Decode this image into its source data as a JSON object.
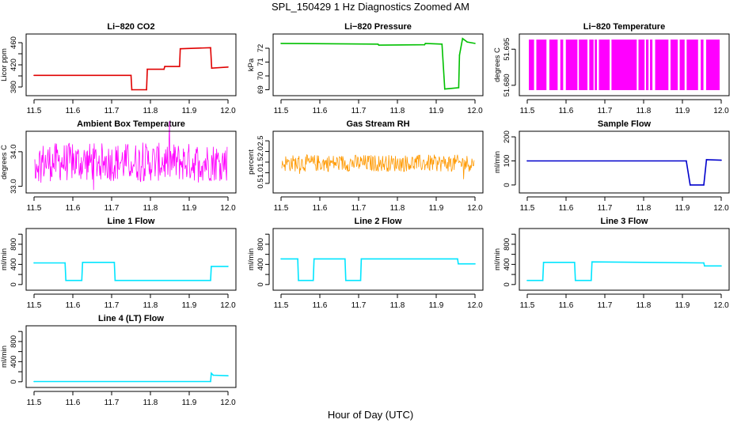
{
  "figure": {
    "title": "SPL_150429  1 Hz Diagnostics Zoomed AM",
    "xlabel": "Hour of Day (UTC)"
  },
  "chart_data": [
    {
      "type": "line",
      "title": "Li−820 CO2",
      "ylabel": "Licor ppm",
      "color": "#e00000",
      "xlim": [
        11.5,
        12.0
      ],
      "xticks": [
        "11.5",
        "11.6",
        "11.7",
        "11.8",
        "11.9",
        "12.0"
      ],
      "ylim": [
        370,
        470
      ],
      "yticks": [
        380,
        400,
        420,
        440,
        460
      ],
      "ytick_labels": [
        "380",
        "",
        "420",
        "",
        "460"
      ],
      "x": [
        11.5,
        11.75,
        11.752,
        11.79,
        11.792,
        11.835,
        11.837,
        11.875,
        11.877,
        11.955,
        11.958,
        12.0
      ],
      "y": [
        401,
        401,
        375,
        375,
        412,
        412,
        417,
        417,
        449,
        451,
        414,
        416
      ]
    },
    {
      "type": "line",
      "title": "Li−820 Pressure",
      "ylabel": "kPa",
      "color": "#00c000",
      "xlim": [
        11.5,
        12.0
      ],
      "xticks": [
        "11.5",
        "11.6",
        "11.7",
        "11.8",
        "11.9",
        "12.0"
      ],
      "ylim": [
        68.8,
        72.8
      ],
      "yticks": [
        69,
        70,
        71,
        72
      ],
      "ytick_labels": [
        "69",
        "70",
        "71",
        "72"
      ],
      "x": [
        11.5,
        11.75,
        11.752,
        11.87,
        11.872,
        11.915,
        11.922,
        11.958,
        11.96,
        11.968,
        11.98,
        12.0
      ],
      "y": [
        72.35,
        72.3,
        72.22,
        72.25,
        72.35,
        72.3,
        69.05,
        69.15,
        71.5,
        72.7,
        72.45,
        72.35
      ]
    },
    {
      "type": "band",
      "title": "Li−820 Temperature",
      "ylabel": "degrees C",
      "color": "#ff00ff",
      "xlim": [
        11.5,
        12.0
      ],
      "xticks": [
        "11.5",
        "11.6",
        "11.7",
        "11.8",
        "11.9",
        "12.0"
      ],
      "ylim": [
        51.677,
        51.7
      ],
      "yticks": [
        51.68,
        51.695
      ],
      "ytick_labels": [
        "51.680",
        "51.695"
      ],
      "low": 51.678,
      "high": 51.699
    },
    {
      "type": "noise",
      "title": "Ambient Box Temperature",
      "ylabel": "degrees C",
      "color": "#ff00ff",
      "xlim": [
        11.5,
        12.0
      ],
      "xticks": [
        "11.5",
        "11.6",
        "11.7",
        "11.8",
        "11.9",
        "12.0"
      ],
      "ylim": [
        32.9,
        34.5
      ],
      "yticks": [
        33.0,
        34.0
      ],
      "ytick_labels": [
        "33.0",
        "34.0"
      ],
      "center": 33.7,
      "spread": 0.7
    },
    {
      "type": "noise",
      "title": "Gas Stream RH",
      "ylabel": "percent",
      "color": "#ff9900",
      "xlim": [
        11.5,
        12.0
      ],
      "xticks": [
        "11.5",
        "11.6",
        "11.7",
        "11.8",
        "11.9",
        "12.0"
      ],
      "ylim": [
        0.2,
        2.8
      ],
      "yticks": [
        0.5,
        1.0,
        1.5,
        2.0,
        2.5
      ],
      "ytick_labels": [
        "0.5",
        "1.0",
        "1.5",
        "2.0",
        "2.5"
      ],
      "center": 1.45,
      "spread": 0.5
    },
    {
      "type": "line",
      "title": "Sample Flow",
      "ylabel": "ml/min",
      "color": "#0000cc",
      "xlim": [
        11.5,
        12.0
      ],
      "xticks": [
        "11.5",
        "11.6",
        "11.7",
        "11.8",
        "11.9",
        "12.0"
      ],
      "ylim": [
        -20,
        210
      ],
      "yticks": [
        0,
        100,
        200
      ],
      "ytick_labels": [
        "0",
        "100",
        "200"
      ],
      "x": [
        11.5,
        11.91,
        11.92,
        11.955,
        11.962,
        12.0
      ],
      "y": [
        100,
        100,
        0,
        0,
        105,
        103
      ]
    },
    {
      "type": "line",
      "title": "Line 1 Flow",
      "ylabel": "ml/min",
      "color": "#00e5ff",
      "xlim": [
        11.5,
        12.0
      ],
      "xticks": [
        "11.5",
        "11.6",
        "11.7",
        "11.8",
        "11.9",
        "12.0"
      ],
      "ylim": [
        -50,
        1050
      ],
      "yticks": [
        0,
        200,
        400,
        600,
        800,
        1000
      ],
      "ytick_labels": [
        "0",
        "",
        "400",
        "",
        "800",
        ""
      ],
      "x": [
        11.5,
        11.58,
        11.582,
        11.623,
        11.625,
        11.707,
        11.709,
        11.955,
        11.957,
        12.0
      ],
      "y": [
        430,
        430,
        80,
        80,
        440,
        440,
        80,
        80,
        360,
        360
      ]
    },
    {
      "type": "line",
      "title": "Line 2 Flow",
      "ylabel": "ml/min",
      "color": "#00e5ff",
      "xlim": [
        11.5,
        12.0
      ],
      "xticks": [
        "11.5",
        "11.6",
        "11.7",
        "11.8",
        "11.9",
        "12.0"
      ],
      "ylim": [
        -50,
        1050
      ],
      "yticks": [
        0,
        200,
        400,
        600,
        800,
        1000
      ],
      "ytick_labels": [
        "0",
        "",
        "400",
        "",
        "800",
        ""
      ],
      "x": [
        11.5,
        11.543,
        11.545,
        11.583,
        11.585,
        11.665,
        11.667,
        11.705,
        11.707,
        11.955,
        11.957,
        12.0
      ],
      "y": [
        510,
        510,
        80,
        80,
        510,
        510,
        80,
        80,
        510,
        510,
        410,
        410
      ]
    },
    {
      "type": "line",
      "title": "Line 3 Flow",
      "ylabel": "ml/min",
      "color": "#00e5ff",
      "xlim": [
        11.5,
        12.0
      ],
      "xticks": [
        "11.5",
        "11.6",
        "11.7",
        "11.8",
        "11.9",
        "12.0"
      ],
      "ylim": [
        -50,
        1050
      ],
      "yticks": [
        0,
        200,
        400,
        600,
        800,
        1000
      ],
      "ytick_labels": [
        "0",
        "",
        "400",
        "",
        "800",
        ""
      ],
      "x": [
        11.5,
        11.54,
        11.542,
        11.622,
        11.624,
        11.665,
        11.667,
        11.955,
        11.957,
        12.0
      ],
      "y": [
        80,
        80,
        440,
        440,
        80,
        80,
        450,
        430,
        370,
        370
      ]
    },
    {
      "type": "line",
      "title": "Line 4 (LT) Flow",
      "ylabel": "ml/min",
      "color": "#00e5ff",
      "xlim": [
        11.5,
        12.0
      ],
      "xticks": [
        "11.5",
        "11.6",
        "11.7",
        "11.8",
        "11.9",
        "12.0"
      ],
      "ylim": [
        -50,
        1050
      ],
      "yticks": [
        0,
        200,
        400,
        600,
        800,
        1000
      ],
      "ytick_labels": [
        "0",
        "",
        "400",
        "",
        "800",
        ""
      ],
      "x": [
        11.5,
        11.955,
        11.957,
        11.962,
        12.0
      ],
      "y": [
        5,
        5,
        170,
        130,
        120
      ]
    }
  ]
}
